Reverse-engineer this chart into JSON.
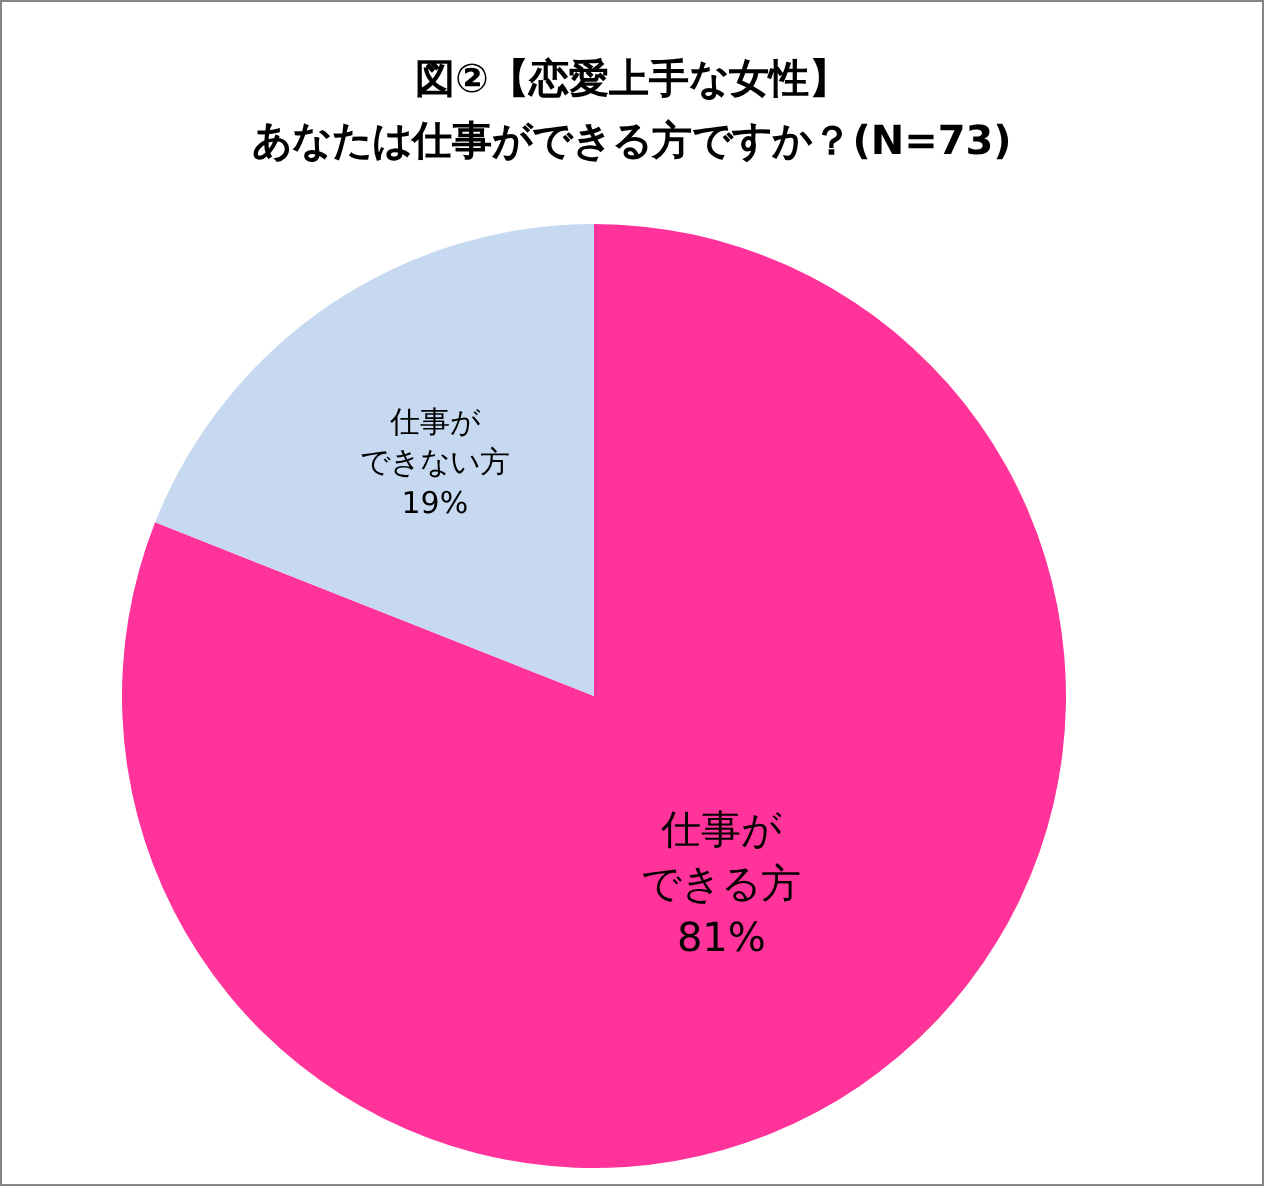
{
  "chart_data": {
    "type": "pie",
    "title": "図②【恋愛上手な女性】",
    "subtitle": "あなたは仕事ができる方ですか？(N=73)",
    "categories": [
      "仕事ができる方",
      "仕事ができない方"
    ],
    "values": [
      81,
      19
    ],
    "value_labels": [
      "81%",
      "19%"
    ],
    "colors": [
      "#ff3399",
      "#c6d9f1"
    ]
  }
}
